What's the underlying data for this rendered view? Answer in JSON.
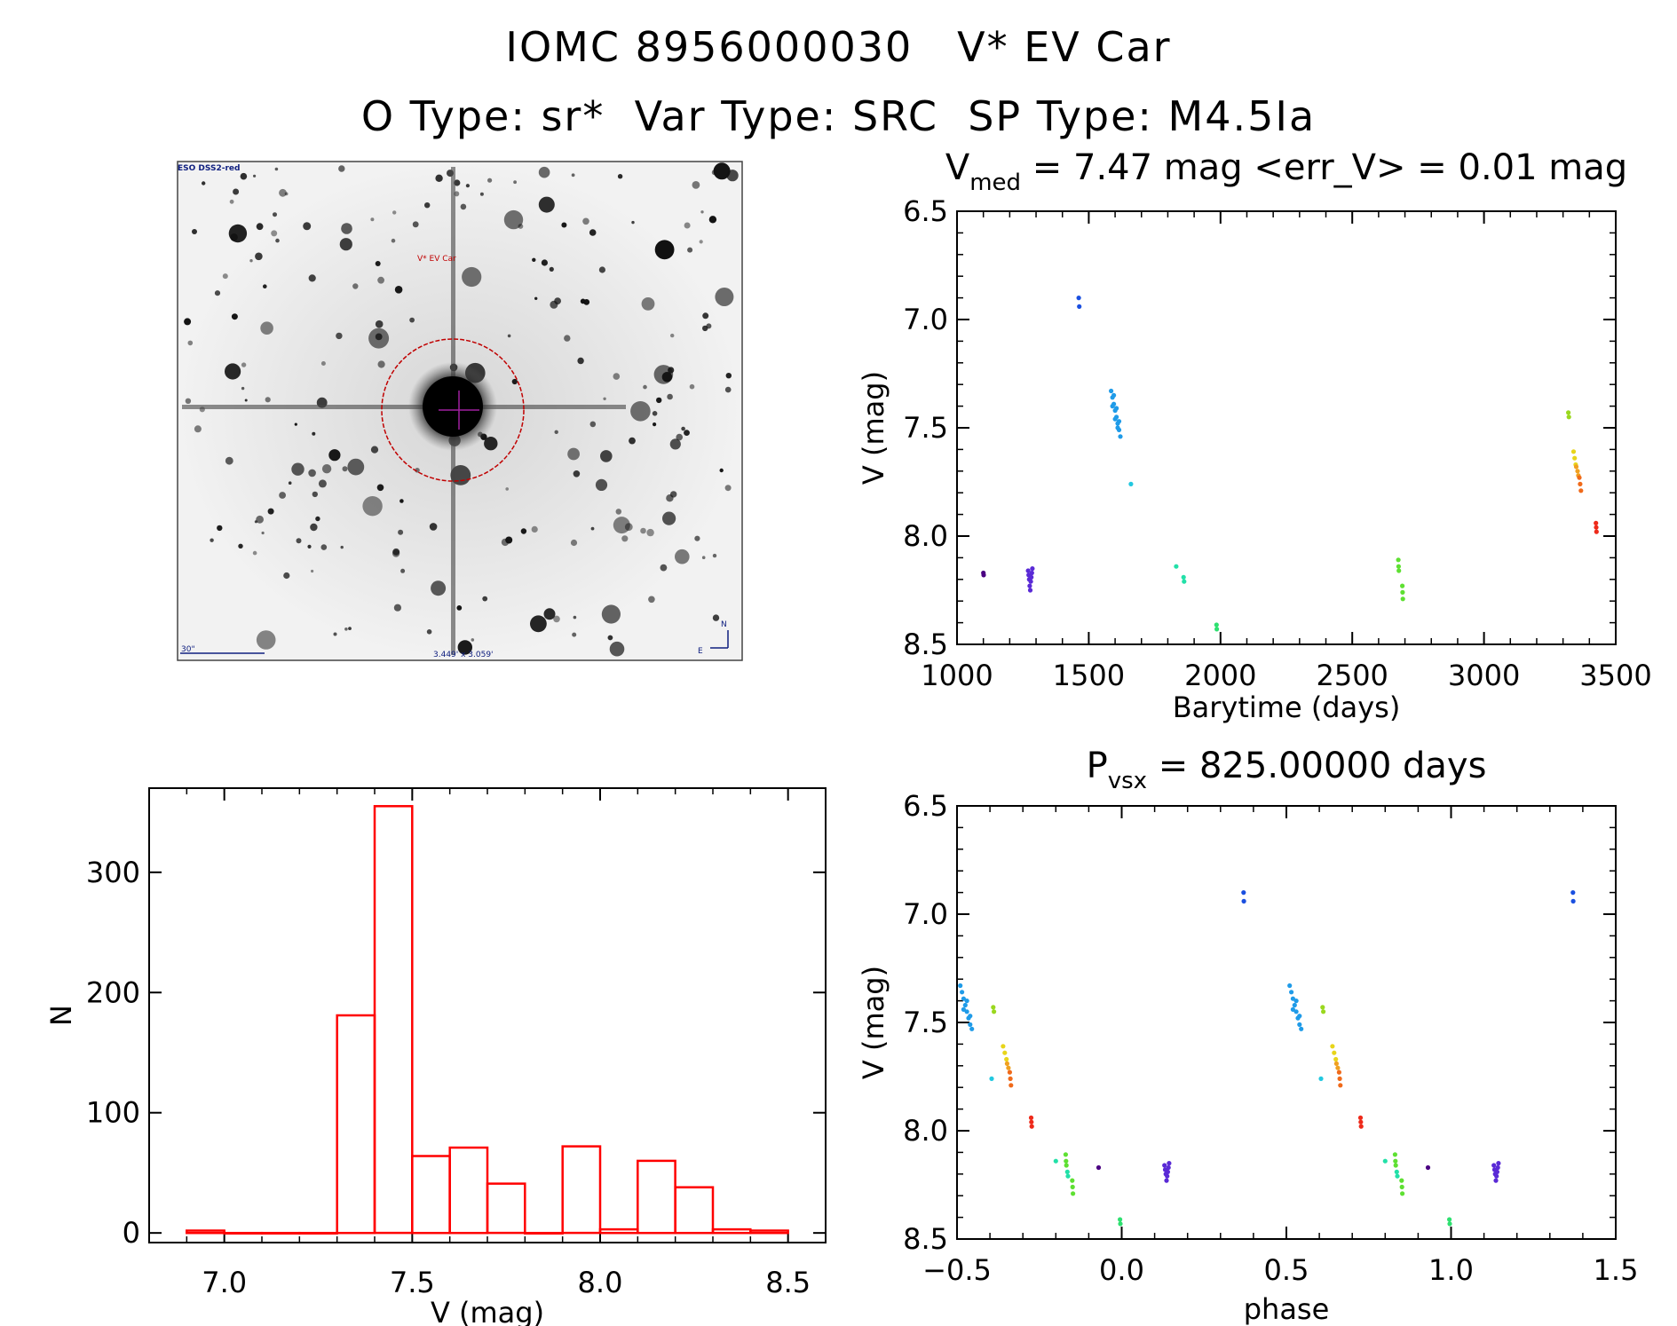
{
  "titles": {
    "line1": "IOMC 8956000030   V* EV Car",
    "line2": "O Type: sr*  Var Type: SRC  SP Type: M4.5Ia"
  },
  "image_panel": {
    "survey_label": "ESO DSS2-red",
    "object_label": "V* EV Car",
    "scale_label": "30\"",
    "fov_label": "3.449' x 3.059'",
    "compass_n": "N",
    "compass_e": "E"
  },
  "colors": {
    "histogram": "#ff0000",
    "accent_marker": "#cc0000",
    "axes": "#000000"
  },
  "chart_data": [
    {
      "id": "lightcurve",
      "type": "scatter",
      "title_main": "V",
      "title_sub": "med",
      "title_rest": " = 7.47 mag <err_V> = 0.01 mag",
      "xlabel": "Barytime (days)",
      "ylabel": "V (mag)",
      "xlim": [
        1000,
        3500
      ],
      "ylim": [
        6.5,
        8.5
      ],
      "y_inverted": true,
      "xticks": [
        "1000",
        "1500",
        "2000",
        "2500",
        "3000",
        "3500"
      ],
      "yticks": [
        "6.5",
        "7.0",
        "7.5",
        "8.0",
        "8.5"
      ],
      "groups": [
        {
          "color": "#4b0082",
          "points": [
            [
              1100,
              8.17
            ],
            [
              1101,
              8.18
            ]
          ]
        },
        {
          "color": "#5a2ad6",
          "points": [
            [
              1270,
              8.16
            ],
            [
              1272,
              8.18
            ],
            [
              1274,
              8.2
            ],
            [
              1276,
              8.23
            ],
            [
              1278,
              8.25
            ],
            [
              1280,
              8.21
            ],
            [
              1282,
              8.19
            ],
            [
              1284,
              8.17
            ],
            [
              1286,
              8.15
            ]
          ]
        },
        {
          "color": "#1a4fe0",
          "points": [
            [
              1462,
              6.9
            ],
            [
              1464,
              6.94
            ]
          ]
        },
        {
          "color": "#1f9be8",
          "points": [
            [
              1585,
              7.33
            ],
            [
              1590,
              7.36
            ],
            [
              1595,
              7.39
            ],
            [
              1600,
              7.42
            ],
            [
              1605,
              7.45
            ],
            [
              1610,
              7.48
            ],
            [
              1615,
              7.51
            ],
            [
              1620,
              7.54
            ],
            [
              1590,
              7.4
            ],
            [
              1600,
              7.46
            ],
            [
              1610,
              7.5
            ],
            [
              1595,
              7.35
            ],
            [
              1605,
              7.41
            ],
            [
              1615,
              7.47
            ]
          ]
        },
        {
          "color": "#22c8e0",
          "points": [
            [
              1660,
              7.76
            ]
          ]
        },
        {
          "color": "#22e0a8",
          "points": [
            [
              1832,
              8.14
            ],
            [
              1860,
              8.19
            ],
            [
              1862,
              8.21
            ]
          ]
        },
        {
          "color": "#2ee070",
          "points": [
            [
              1985,
              8.41
            ],
            [
              1986,
              8.43
            ]
          ]
        },
        {
          "color": "#5ee032",
          "points": [
            [
              2675,
              8.11
            ],
            [
              2676,
              8.14
            ],
            [
              2677,
              8.16
            ],
            [
              2690,
              8.23
            ],
            [
              2691,
              8.26
            ],
            [
              2692,
              8.29
            ]
          ]
        },
        {
          "color": "#9ad81e",
          "points": [
            [
              3320,
              7.43
            ],
            [
              3322,
              7.45
            ]
          ]
        },
        {
          "color": "#e8d51a",
          "points": [
            [
              3340,
              7.61
            ],
            [
              3344,
              7.64
            ],
            [
              3348,
              7.67
            ]
          ]
        },
        {
          "color": "#f0a020",
          "points": [
            [
              3350,
              7.68
            ],
            [
              3355,
              7.7
            ],
            [
              3358,
              7.72
            ]
          ]
        },
        {
          "color": "#f06a1a",
          "points": [
            [
              3362,
              7.73
            ],
            [
              3365,
              7.76
            ],
            [
              3368,
              7.79
            ]
          ]
        },
        {
          "color": "#ee2a1a",
          "points": [
            [
              3425,
              7.94
            ],
            [
              3426,
              7.96
            ],
            [
              3427,
              7.98
            ]
          ]
        }
      ]
    },
    {
      "id": "histogram",
      "type": "bar",
      "xlabel": "V (mag)",
      "ylabel": "N",
      "xlim": [
        6.8,
        8.6
      ],
      "ylim": [
        -8,
        370
      ],
      "xticks": [
        "7.0",
        "7.5",
        "8.0",
        "8.5"
      ],
      "yticks": [
        "0",
        "100",
        "200",
        "300"
      ],
      "bin_width": 0.1,
      "bins": [
        {
          "left": 6.9,
          "count": 2
        },
        {
          "left": 7.0,
          "count": 0
        },
        {
          "left": 7.1,
          "count": 0
        },
        {
          "left": 7.2,
          "count": 0
        },
        {
          "left": 7.3,
          "count": 181
        },
        {
          "left": 7.4,
          "count": 355
        },
        {
          "left": 7.5,
          "count": 64
        },
        {
          "left": 7.6,
          "count": 71
        },
        {
          "left": 7.7,
          "count": 41
        },
        {
          "left": 7.8,
          "count": 0
        },
        {
          "left": 7.9,
          "count": 72
        },
        {
          "left": 8.0,
          "count": 3
        },
        {
          "left": 8.1,
          "count": 60
        },
        {
          "left": 8.2,
          "count": 38
        },
        {
          "left": 8.3,
          "count": 3
        },
        {
          "left": 8.4,
          "count": 2
        }
      ]
    },
    {
      "id": "phased",
      "type": "scatter",
      "title_main": "P",
      "title_sub": "vsx",
      "title_rest": " = 825.00000 days",
      "xlabel": "phase",
      "ylabel": "V (mag)",
      "xlim": [
        -0.5,
        1.5
      ],
      "ylim": [
        6.5,
        8.5
      ],
      "y_inverted": true,
      "xticks": [
        "−0.5",
        "0.0",
        "0.5",
        "1.0",
        "1.5"
      ],
      "yticks": [
        "6.5",
        "7.0",
        "7.5",
        "8.0",
        "8.5"
      ],
      "groups": [
        {
          "color": "#1f9be8",
          "points": [
            [
              -0.49,
              7.33
            ],
            [
              -0.485,
              7.36
            ],
            [
              -0.48,
              7.39
            ],
            [
              -0.475,
              7.42
            ],
            [
              -0.47,
              7.45
            ],
            [
              -0.465,
              7.48
            ],
            [
              -0.46,
              7.51
            ],
            [
              -0.455,
              7.53
            ],
            [
              -0.48,
              7.44
            ],
            [
              -0.47,
              7.4
            ],
            [
              -0.46,
              7.47
            ],
            [
              0.51,
              7.33
            ],
            [
              0.515,
              7.36
            ],
            [
              0.52,
              7.39
            ],
            [
              0.525,
              7.42
            ],
            [
              0.53,
              7.45
            ],
            [
              0.535,
              7.48
            ],
            [
              0.54,
              7.51
            ],
            [
              0.545,
              7.53
            ],
            [
              0.52,
              7.44
            ],
            [
              0.53,
              7.4
            ],
            [
              0.54,
              7.47
            ]
          ]
        },
        {
          "color": "#9ad81e",
          "points": [
            [
              -0.39,
              7.43
            ],
            [
              -0.388,
              7.45
            ],
            [
              0.61,
              7.43
            ],
            [
              0.612,
              7.45
            ]
          ]
        },
        {
          "color": "#22c8e0",
          "points": [
            [
              -0.395,
              7.76
            ],
            [
              0.605,
              7.76
            ]
          ]
        },
        {
          "color": "#e8d51a",
          "points": [
            [
              -0.36,
              7.61
            ],
            [
              -0.355,
              7.64
            ],
            [
              -0.35,
              7.67
            ],
            [
              0.64,
              7.61
            ],
            [
              0.645,
              7.64
            ],
            [
              0.65,
              7.67
            ]
          ]
        },
        {
          "color": "#f0a020",
          "points": [
            [
              -0.348,
              7.69
            ],
            [
              -0.344,
              7.71
            ],
            [
              0.652,
              7.69
            ],
            [
              0.656,
              7.71
            ]
          ]
        },
        {
          "color": "#f06a1a",
          "points": [
            [
              -0.34,
              7.73
            ],
            [
              -0.338,
              7.76
            ],
            [
              -0.336,
              7.79
            ],
            [
              0.66,
              7.73
            ],
            [
              0.662,
              7.76
            ],
            [
              0.664,
              7.79
            ]
          ]
        },
        {
          "color": "#ee2a1a",
          "points": [
            [
              -0.275,
              7.94
            ],
            [
              -0.274,
              7.96
            ],
            [
              -0.273,
              7.98
            ],
            [
              0.725,
              7.94
            ],
            [
              0.726,
              7.96
            ],
            [
              0.727,
              7.98
            ]
          ]
        },
        {
          "color": "#22e0a8",
          "points": [
            [
              -0.2,
              8.14
            ],
            [
              -0.165,
              8.19
            ],
            [
              -0.163,
              8.21
            ],
            [
              0.8,
              8.14
            ],
            [
              0.835,
              8.19
            ],
            [
              0.837,
              8.21
            ]
          ]
        },
        {
          "color": "#5ee032",
          "points": [
            [
              -0.17,
              8.11
            ],
            [
              -0.169,
              8.14
            ],
            [
              -0.168,
              8.16
            ],
            [
              -0.15,
              8.23
            ],
            [
              -0.149,
              8.26
            ],
            [
              -0.148,
              8.29
            ],
            [
              0.83,
              8.11
            ],
            [
              0.831,
              8.14
            ],
            [
              0.832,
              8.16
            ],
            [
              0.85,
              8.23
            ],
            [
              0.851,
              8.26
            ],
            [
              0.852,
              8.29
            ]
          ]
        },
        {
          "color": "#4b0082",
          "points": [
            [
              -0.07,
              8.17
            ],
            [
              0.93,
              8.17
            ]
          ]
        },
        {
          "color": "#2ee070",
          "points": [
            [
              -0.005,
              8.41
            ],
            [
              -0.004,
              8.43
            ],
            [
              0.995,
              8.41
            ],
            [
              0.996,
              8.43
            ]
          ]
        },
        {
          "color": "#5a2ad6",
          "points": [
            [
              0.13,
              8.16
            ],
            [
              0.132,
              8.18
            ],
            [
              0.134,
              8.2
            ],
            [
              0.136,
              8.23
            ],
            [
              0.138,
              8.21
            ],
            [
              0.14,
              8.19
            ],
            [
              0.142,
              8.17
            ],
            [
              0.144,
              8.15
            ],
            [
              1.13,
              8.16
            ],
            [
              1.132,
              8.18
            ],
            [
              1.134,
              8.2
            ],
            [
              1.136,
              8.23
            ],
            [
              1.138,
              8.21
            ],
            [
              1.14,
              8.19
            ],
            [
              1.142,
              8.17
            ],
            [
              1.144,
              8.15
            ]
          ]
        },
        {
          "color": "#1a4fe0",
          "points": [
            [
              0.37,
              6.9
            ],
            [
              0.371,
              6.94
            ],
            [
              1.37,
              6.9
            ],
            [
              1.371,
              6.94
            ]
          ]
        }
      ]
    }
  ]
}
